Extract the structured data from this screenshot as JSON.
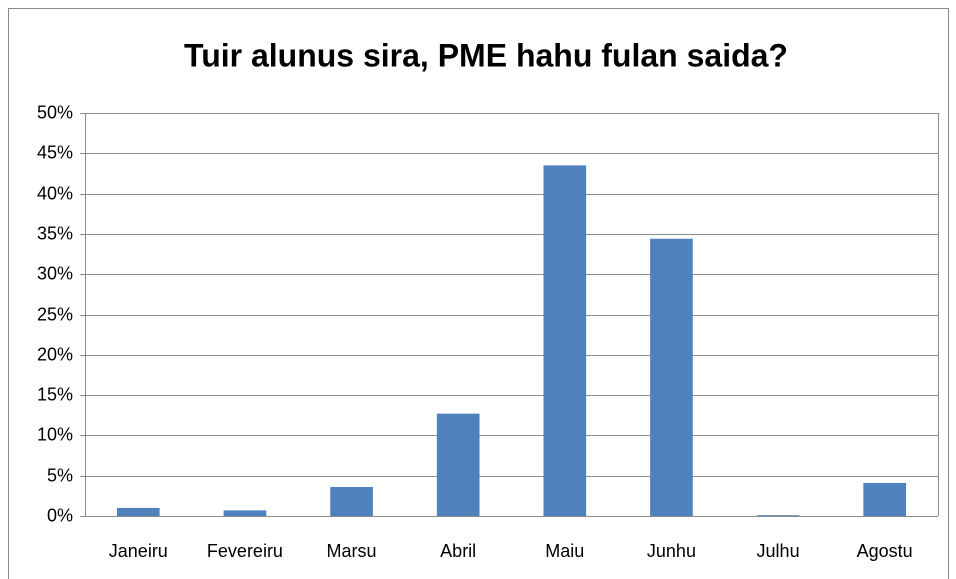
{
  "chart_data": {
    "type": "bar",
    "title": "Tuir alunus sira, PME hahu fulan saida?",
    "categories": [
      "Janeiru",
      "Fevereiru",
      "Marsu",
      "Abril",
      "Maiu",
      "Junhu",
      "Julhu",
      "Agostu"
    ],
    "values": [
      1.0,
      0.7,
      3.6,
      12.7,
      43.5,
      34.4,
      0.1,
      4.1
    ],
    "color": "#4f81bd",
    "ylim": [
      0,
      50
    ],
    "yticks": [
      {
        "value": 0,
        "label": "0%"
      },
      {
        "value": 5,
        "label": "5%"
      },
      {
        "value": 10,
        "label": "10%"
      },
      {
        "value": 15,
        "label": "15%"
      },
      {
        "value": 20,
        "label": "20%"
      },
      {
        "value": 25,
        "label": "25%"
      },
      {
        "value": 30,
        "label": "30%"
      },
      {
        "value": 35,
        "label": "35%"
      },
      {
        "value": 40,
        "label": "40%"
      },
      {
        "value": 45,
        "label": "45%"
      },
      {
        "value": 50,
        "label": "50%"
      }
    ],
    "grid": true
  }
}
